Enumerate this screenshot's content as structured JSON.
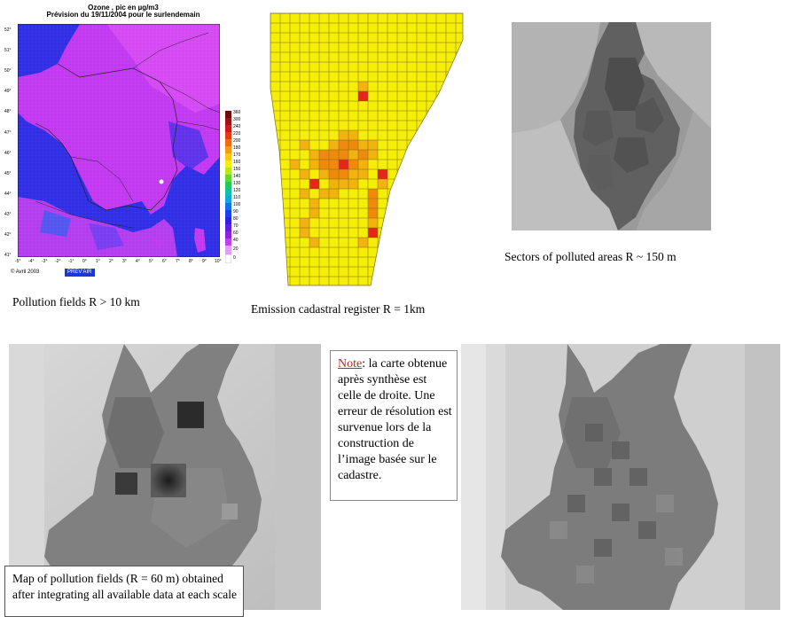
{
  "ozone_map": {
    "title": "Ozone , pic en µg/m3",
    "subtitle": "Prévision du 19/11/2004 pour le surlendemain",
    "lat_labels": [
      "52°",
      "51°",
      "50°",
      "49°",
      "48°",
      "47°",
      "46°",
      "45°",
      "44°",
      "43°",
      "42°",
      "41°"
    ],
    "lon_labels": [
      "-5°",
      "-4°",
      "-3°",
      "-2°",
      "-1°",
      "0°",
      "1°",
      "2°",
      "3°",
      "4°",
      "5°",
      "6°",
      "7°",
      "8°",
      "9°",
      "10°"
    ],
    "colorbar_labels": [
      "360",
      "300",
      "240",
      "220",
      "200",
      "180",
      "170",
      "160",
      "150",
      "140",
      "130",
      "120",
      "110",
      "100",
      "90",
      "80",
      "70",
      "60",
      "40",
      "20",
      "0"
    ],
    "credit": "© Avril 2003",
    "brand": "PREV'AIR",
    "colors": {
      "land": "#c238f2",
      "sea": "#2f2de6",
      "border": "#222222"
    }
  },
  "captions": {
    "pollution_fields": "Pollution fields R > 10 km",
    "emission_register": "Emission cadastral register R = 1km",
    "sectors": "Sectors of polluted areas R ~ 150 m"
  },
  "note": {
    "label": "Note",
    "text": ": la carte obtenue après synthèse est celle de droite. Une erreur de résolution est survenue lors de la construction de l’image basée sur le cadastre."
  },
  "map_caption": "Map of pollution fields (R = 60 m) obtained after integrating all available data at each scale",
  "grid_colors": {
    "low": "#f5ef08",
    "mid": "#f2b20f",
    "high": "#ef8a0c",
    "top": "#e5261b"
  }
}
